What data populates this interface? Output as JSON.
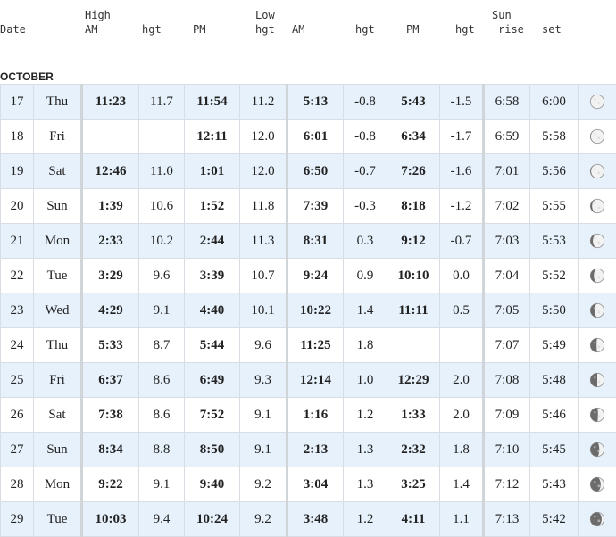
{
  "header": {
    "date": "Date",
    "high": "High",
    "low": "Low",
    "sun": "Sun",
    "am": "AM",
    "pm": "PM",
    "hgt": "hgt",
    "rise": "rise",
    "set": "set"
  },
  "month": "OCTOBER",
  "rows": [
    {
      "day": "17",
      "dow": "Thu",
      "h_am": "11:23",
      "h_am_hgt": "11.7",
      "h_pm": "11:54",
      "h_pm_hgt": "11.2",
      "l_am": "5:13",
      "l_am_hgt": "-0.8",
      "l_pm": "5:43",
      "l_pm_hgt": "-1.5",
      "rise": "6:58",
      "set": "6:00",
      "moon": "full",
      "moon_phase": 0.98
    },
    {
      "day": "18",
      "dow": "Fri",
      "h_am": "",
      "h_am_hgt": "",
      "h_pm": "12:11",
      "h_pm_hgt": "12.0",
      "l_am": "6:01",
      "l_am_hgt": "-0.8",
      "l_pm": "6:34",
      "l_pm_hgt": "-1.7",
      "rise": "6:59",
      "set": "5:58",
      "moon": "full",
      "moon_phase": 0.97
    },
    {
      "day": "19",
      "dow": "Sat",
      "h_am": "12:46",
      "h_am_hgt": "11.0",
      "h_pm": "1:01",
      "h_pm_hgt": "12.0",
      "l_am": "6:50",
      "l_am_hgt": "-0.7",
      "l_pm": "7:26",
      "l_pm_hgt": "-1.6",
      "rise": "7:01",
      "set": "5:56",
      "moon": "waning-gibbous",
      "moon_phase": 0.95
    },
    {
      "day": "20",
      "dow": "Sun",
      "h_am": "1:39",
      "h_am_hgt": "10.6",
      "h_pm": "1:52",
      "h_pm_hgt": "11.8",
      "l_am": "7:39",
      "l_am_hgt": "-0.3",
      "l_pm": "8:18",
      "l_pm_hgt": "-1.2",
      "rise": "7:02",
      "set": "5:55",
      "moon": "waning-gibbous",
      "moon_phase": 0.88
    },
    {
      "day": "21",
      "dow": "Mon",
      "h_am": "2:33",
      "h_am_hgt": "10.2",
      "h_pm": "2:44",
      "h_pm_hgt": "11.3",
      "l_am": "8:31",
      "l_am_hgt": "0.3",
      "l_pm": "9:12",
      "l_pm_hgt": "-0.7",
      "rise": "7:03",
      "set": "5:53",
      "moon": "waning-gibbous",
      "moon_phase": 0.82
    },
    {
      "day": "22",
      "dow": "Tue",
      "h_am": "3:29",
      "h_am_hgt": "9.6",
      "h_pm": "3:39",
      "h_pm_hgt": "10.7",
      "l_am": "9:24",
      "l_am_hgt": "0.9",
      "l_pm": "10:10",
      "l_pm_hgt": "0.0",
      "rise": "7:04",
      "set": "5:52",
      "moon": "waning-gibbous",
      "moon_phase": 0.75
    },
    {
      "day": "23",
      "dow": "Wed",
      "h_am": "4:29",
      "h_am_hgt": "9.1",
      "h_pm": "4:40",
      "h_pm_hgt": "10.1",
      "l_am": "10:22",
      "l_am_hgt": "1.4",
      "l_pm": "11:11",
      "l_pm_hgt": "0.5",
      "rise": "7:05",
      "set": "5:50",
      "moon": "waning-gibbous",
      "moon_phase": 0.68
    },
    {
      "day": "24",
      "dow": "Thu",
      "h_am": "5:33",
      "h_am_hgt": "8.7",
      "h_pm": "5:44",
      "h_pm_hgt": "9.6",
      "l_am": "11:25",
      "l_am_hgt": "1.8",
      "l_pm": "",
      "l_pm_hgt": "",
      "rise": "7:07",
      "set": "5:49",
      "moon": "last-quarter",
      "moon_phase": 0.55
    },
    {
      "day": "25",
      "dow": "Fri",
      "h_am": "6:37",
      "h_am_hgt": "8.6",
      "h_pm": "6:49",
      "h_pm_hgt": "9.3",
      "l_am": "12:14",
      "l_am_hgt": "1.0",
      "l_pm": "12:29",
      "l_pm_hgt": "2.0",
      "rise": "7:08",
      "set": "5:48",
      "moon": "last-quarter",
      "moon_phase": 0.5
    },
    {
      "day": "26",
      "dow": "Sat",
      "h_am": "7:38",
      "h_am_hgt": "8.6",
      "h_pm": "7:52",
      "h_pm_hgt": "9.1",
      "l_am": "1:16",
      "l_am_hgt": "1.2",
      "l_pm": "1:33",
      "l_pm_hgt": "2.0",
      "rise": "7:09",
      "set": "5:46",
      "moon": "last-quarter",
      "moon_phase": 0.45
    },
    {
      "day": "27",
      "dow": "Sun",
      "h_am": "8:34",
      "h_am_hgt": "8.8",
      "h_pm": "8:50",
      "h_pm_hgt": "9.1",
      "l_am": "2:13",
      "l_am_hgt": "1.3",
      "l_pm": "2:32",
      "l_pm_hgt": "1.8",
      "rise": "7:10",
      "set": "5:45",
      "moon": "waning-crescent",
      "moon_phase": 0.35
    },
    {
      "day": "28",
      "dow": "Mon",
      "h_am": "9:22",
      "h_am_hgt": "9.1",
      "h_pm": "9:40",
      "h_pm_hgt": "9.2",
      "l_am": "3:04",
      "l_am_hgt": "1.3",
      "l_pm": "3:25",
      "l_pm_hgt": "1.4",
      "rise": "7:12",
      "set": "5:43",
      "moon": "waning-crescent",
      "moon_phase": 0.25
    },
    {
      "day": "29",
      "dow": "Tue",
      "h_am": "10:03",
      "h_am_hgt": "9.4",
      "h_pm": "10:24",
      "h_pm_hgt": "9.2",
      "l_am": "3:48",
      "l_am_hgt": "1.2",
      "l_pm": "4:11",
      "l_pm_hgt": "1.1",
      "rise": "7:13",
      "set": "5:42",
      "moon": "waning-crescent",
      "moon_phase": 0.18
    }
  ],
  "colors": {
    "row_alt": "#e6f1fb",
    "grid": "#d7dde3",
    "moon_light": "#f2f2f2",
    "moon_dark": "#6b6b6b"
  }
}
